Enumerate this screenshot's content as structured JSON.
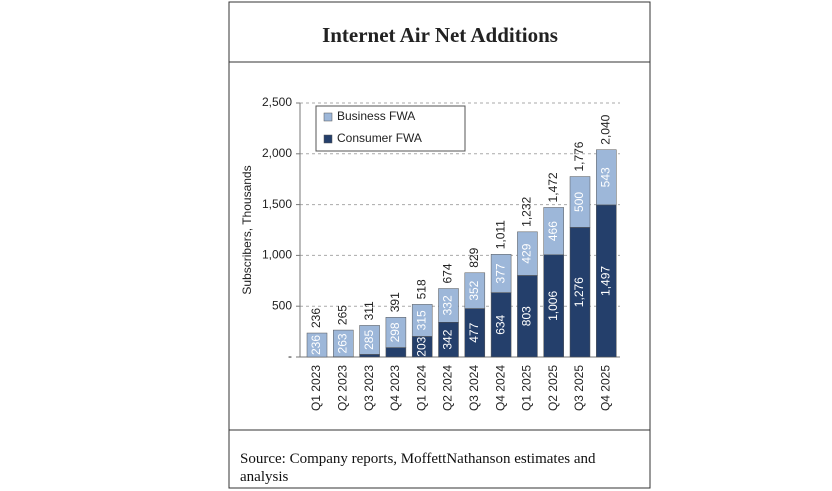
{
  "chart_data": {
    "type": "stacked_bar",
    "title": "Internet Air Net Additions",
    "y_label": "Subscribers, Thousands",
    "categories": [
      "Q1 2023",
      "Q2 2023",
      "Q3 2023",
      "Q4 2023",
      "Q1 2024",
      "Q2 2024",
      "Q3 2024",
      "Q4 2024",
      "Q1 2025",
      "Q2 2025",
      "Q3 2025",
      "Q4 2025"
    ],
    "series": [
      {
        "name": "Consumer FWA",
        "color": "#243f6b",
        "values": [
          0,
          2,
          26,
          93,
          203,
          342,
          477,
          634,
          803,
          1006,
          1276,
          1497
        ],
        "value_labels": [
          null,
          null,
          null,
          null,
          "203",
          "342",
          "477",
          "634",
          "803",
          "1,006",
          "1,276",
          "1,497"
        ]
      },
      {
        "name": "Business FWA",
        "color": "#9db7d9",
        "values": [
          236,
          263,
          285,
          298,
          315,
          332,
          352,
          377,
          429,
          466,
          500,
          543
        ]
      }
    ],
    "totals": {
      "values": [
        236,
        265,
        311,
        391,
        518,
        674,
        829,
        1011,
        1232,
        1472,
        1776,
        2040
      ],
      "value_labels": [
        "236",
        "265",
        "311",
        "391",
        "518",
        "674",
        "829",
        "1,011",
        "1,232",
        "1,472",
        "1,776",
        "2,040"
      ]
    },
    "ylim": [
      0,
      2500
    ],
    "yticks": [
      {
        "value": 0,
        "label": "-"
      },
      500,
      {
        "value": 1000,
        "label": "1,000"
      },
      {
        "value": 1500,
        "label": "1,500"
      },
      {
        "value": 2000,
        "label": "2,000"
      },
      {
        "value": 2500,
        "label": "2,500"
      }
    ],
    "grid": true,
    "legend": "upper left"
  },
  "source": "Source: Company reports, MoffettNathanson estimates and analysis"
}
